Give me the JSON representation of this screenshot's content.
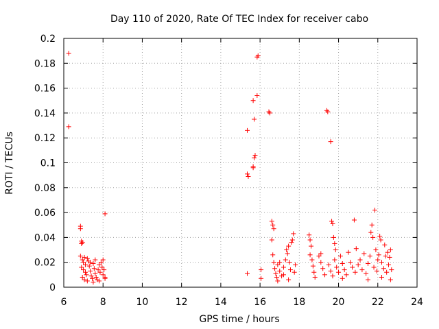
{
  "chart_data": {
    "type": "scatter",
    "title": "Day 110 of 2020, Rate Of TEC Index for receiver cabo",
    "xlabel": "GPS time / hours",
    "ylabel": "ROTI / TECUs",
    "xlim": [
      6,
      24
    ],
    "ylim": [
      0,
      0.2
    ],
    "x_ticks": [
      "6",
      "8",
      "10",
      "12",
      "14",
      "16",
      "18",
      "20",
      "22",
      "24"
    ],
    "y_ticks": [
      "0",
      "0.02",
      "0.04",
      "0.06",
      "0.08",
      "0.1",
      "0.12",
      "0.14",
      "0.16",
      "0.18",
      "0.2"
    ],
    "grid": true,
    "marker": "plus",
    "color": "#ff0000",
    "series": [
      {
        "name": "ROTI",
        "points": [
          [
            6.25,
            0.188
          ],
          [
            6.25,
            0.129
          ],
          [
            6.85,
            0.049
          ],
          [
            6.85,
            0.047
          ],
          [
            6.9,
            0.037
          ],
          [
            6.95,
            0.036
          ],
          [
            6.9,
            0.035
          ],
          [
            6.85,
            0.025
          ],
          [
            6.95,
            0.022
          ],
          [
            7.0,
            0.02
          ],
          [
            7.05,
            0.024
          ],
          [
            7.1,
            0.018
          ],
          [
            6.9,
            0.016
          ],
          [
            7.0,
            0.014
          ],
          [
            7.1,
            0.012
          ],
          [
            7.15,
            0.01
          ],
          [
            7.2,
            0.023
          ],
          [
            7.25,
            0.021
          ],
          [
            7.3,
            0.017
          ],
          [
            7.35,
            0.013
          ],
          [
            7.4,
            0.009
          ],
          [
            7.45,
            0.007
          ],
          [
            7.5,
            0.019
          ],
          [
            7.55,
            0.015
          ],
          [
            7.6,
            0.011
          ],
          [
            7.65,
            0.008
          ],
          [
            7.7,
            0.006
          ],
          [
            7.75,
            0.014
          ],
          [
            7.8,
            0.018
          ],
          [
            7.85,
            0.012
          ],
          [
            7.9,
            0.02
          ],
          [
            7.95,
            0.016
          ],
          [
            8.0,
            0.01
          ],
          [
            8.0,
            0.022
          ],
          [
            8.05,
            0.014
          ],
          [
            8.1,
            0.008
          ],
          [
            6.95,
            0.008
          ],
          [
            7.05,
            0.006
          ],
          [
            7.2,
            0.005
          ],
          [
            7.35,
            0.02
          ],
          [
            7.5,
            0.004
          ],
          [
            7.6,
            0.022
          ],
          [
            7.8,
            0.005
          ],
          [
            8.1,
            0.059
          ],
          [
            8.1,
            0.007
          ],
          [
            15.35,
            0.091
          ],
          [
            15.4,
            0.089
          ],
          [
            15.35,
            0.126
          ],
          [
            15.35,
            0.011
          ],
          [
            15.65,
            0.097
          ],
          [
            15.65,
            0.096
          ],
          [
            15.7,
            0.104
          ],
          [
            15.75,
            0.106
          ],
          [
            15.7,
            0.135
          ],
          [
            15.65,
            0.15
          ],
          [
            15.85,
            0.154
          ],
          [
            15.85,
            0.185
          ],
          [
            15.9,
            0.186
          ],
          [
            16.05,
            0.014
          ],
          [
            16.05,
            0.007
          ],
          [
            16.45,
            0.141
          ],
          [
            16.5,
            0.14
          ],
          [
            16.6,
            0.053
          ],
          [
            16.65,
            0.05
          ],
          [
            16.7,
            0.047
          ],
          [
            16.6,
            0.038
          ],
          [
            16.65,
            0.026
          ],
          [
            16.7,
            0.02
          ],
          [
            16.75,
            0.015
          ],
          [
            16.8,
            0.011
          ],
          [
            16.85,
            0.008
          ],
          [
            16.9,
            0.018
          ],
          [
            17.0,
            0.013
          ],
          [
            17.1,
            0.009
          ],
          [
            17.2,
            0.016
          ],
          [
            17.3,
            0.022
          ],
          [
            17.35,
            0.03
          ],
          [
            17.4,
            0.027
          ],
          [
            17.45,
            0.033
          ],
          [
            17.5,
            0.02
          ],
          [
            17.55,
            0.014
          ],
          [
            17.6,
            0.036
          ],
          [
            17.65,
            0.038
          ],
          [
            17.7,
            0.043
          ],
          [
            17.75,
            0.012
          ],
          [
            17.8,
            0.018
          ],
          [
            17.45,
            0.006
          ],
          [
            17.0,
            0.02
          ],
          [
            16.9,
            0.005
          ],
          [
            17.2,
            0.01
          ],
          [
            18.5,
            0.042
          ],
          [
            18.55,
            0.038
          ],
          [
            18.6,
            0.033
          ],
          [
            18.55,
            0.026
          ],
          [
            18.65,
            0.022
          ],
          [
            18.7,
            0.017
          ],
          [
            18.75,
            0.012
          ],
          [
            18.8,
            0.008
          ],
          [
            19.0,
            0.025
          ],
          [
            19.1,
            0.02
          ],
          [
            19.2,
            0.015
          ],
          [
            19.3,
            0.01
          ],
          [
            19.1,
            0.027
          ],
          [
            19.4,
            0.142
          ],
          [
            19.45,
            0.141
          ],
          [
            19.6,
            0.117
          ],
          [
            19.65,
            0.053
          ],
          [
            19.7,
            0.051
          ],
          [
            19.75,
            0.04
          ],
          [
            19.8,
            0.035
          ],
          [
            19.85,
            0.03
          ],
          [
            19.5,
            0.018
          ],
          [
            19.6,
            0.013
          ],
          [
            19.7,
            0.009
          ],
          [
            19.8,
            0.022
          ],
          [
            19.9,
            0.016
          ],
          [
            20.0,
            0.012
          ],
          [
            20.1,
            0.025
          ],
          [
            20.2,
            0.019
          ],
          [
            20.3,
            0.014
          ],
          [
            20.4,
            0.01
          ],
          [
            20.5,
            0.028
          ],
          [
            20.6,
            0.02
          ],
          [
            20.7,
            0.016
          ],
          [
            20.8,
            0.054
          ],
          [
            20.85,
            0.012
          ],
          [
            20.9,
            0.031
          ],
          [
            21.0,
            0.018
          ],
          [
            21.1,
            0.022
          ],
          [
            21.2,
            0.014
          ],
          [
            21.3,
            0.027
          ],
          [
            21.4,
            0.011
          ],
          [
            21.5,
            0.019
          ],
          [
            21.6,
            0.025
          ],
          [
            21.65,
            0.044
          ],
          [
            21.7,
            0.05
          ],
          [
            21.75,
            0.04
          ],
          [
            21.8,
            0.016
          ],
          [
            21.85,
            0.062
          ],
          [
            21.9,
            0.03
          ],
          [
            21.95,
            0.013
          ],
          [
            22.0,
            0.022
          ],
          [
            22.05,
            0.026
          ],
          [
            22.1,
            0.041
          ],
          [
            22.15,
            0.038
          ],
          [
            22.2,
            0.02
          ],
          [
            22.3,
            0.015
          ],
          [
            22.35,
            0.034
          ],
          [
            22.4,
            0.025
          ],
          [
            22.45,
            0.012
          ],
          [
            22.5,
            0.028
          ],
          [
            22.55,
            0.018
          ],
          [
            22.6,
            0.024
          ],
          [
            22.65,
            0.03
          ],
          [
            22.7,
            0.014
          ],
          [
            22.65,
            0.006
          ],
          [
            22.2,
            0.008
          ],
          [
            21.5,
            0.006
          ],
          [
            20.2,
            0.007
          ]
        ]
      }
    ]
  }
}
